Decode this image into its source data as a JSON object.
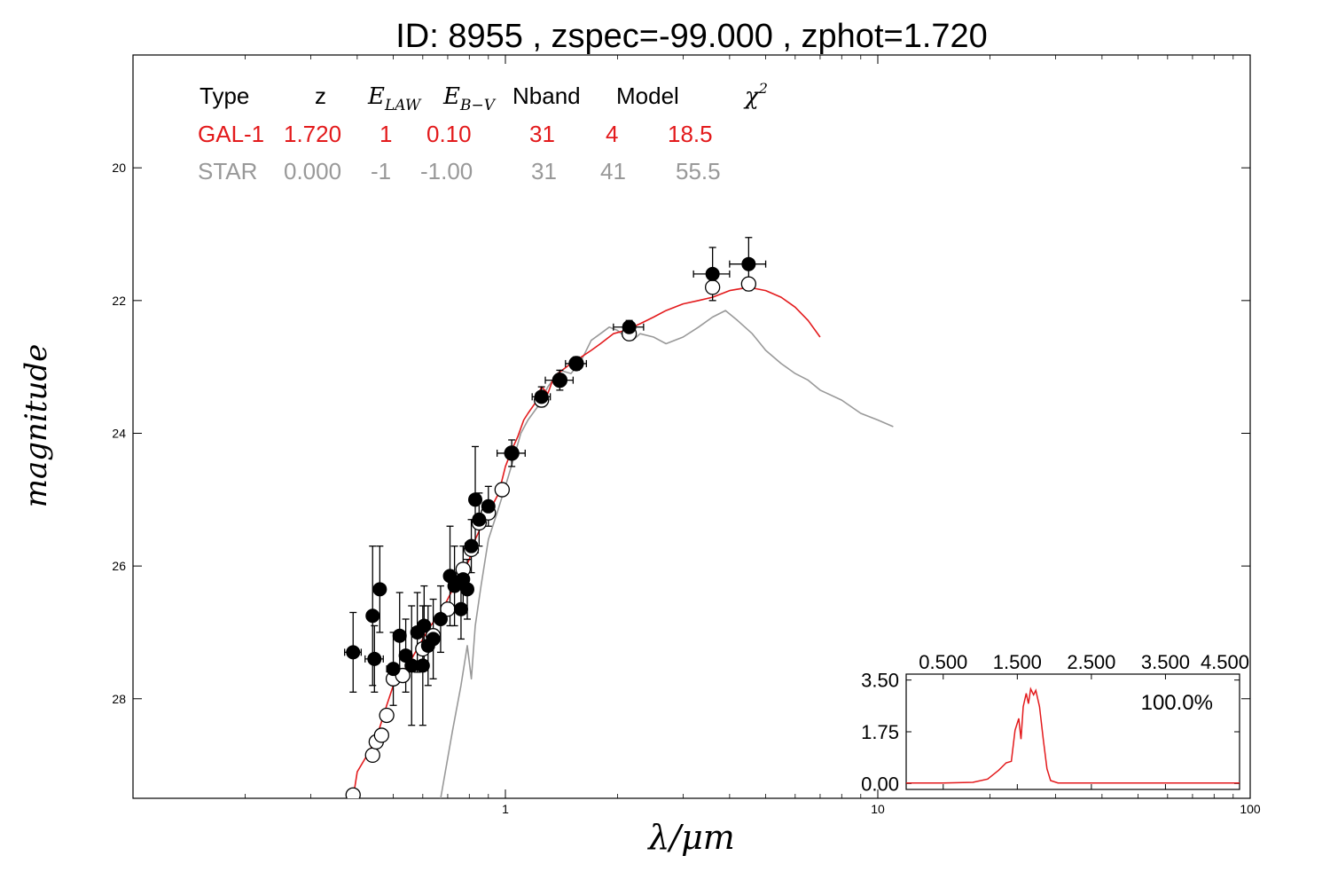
{
  "title": "ID:  8955  , zspec=-99.000 , zphot=1.720",
  "colors": {
    "galaxy_model": "#e31a1c",
    "star_model": "#999999",
    "observed": "#000000",
    "model_mag": "#ffffff",
    "star_text": "#999999",
    "gal_text": "#e31a1c"
  },
  "table": {
    "headers": {
      "type": "Type",
      "z": "z",
      "elaw_main": "E",
      "elaw_sub": "LAW",
      "ebv_main": "E",
      "ebv_sub": "B−V",
      "nband": "Nband",
      "model": "Model",
      "chi_main": "χ",
      "chi_sup": "2"
    },
    "rows": [
      {
        "type": "GAL-1",
        "z": "1.720",
        "elaw": "1",
        "ebv": "0.10",
        "nband": "31",
        "model": "4",
        "chi2": "18.5"
      },
      {
        "type": "STAR",
        "z": "0.000",
        "elaw": "-1",
        "ebv": "-1.00",
        "nband": "31",
        "model": "41",
        "chi2": "55.5"
      }
    ]
  },
  "chart_data": [
    {
      "type": "scatter",
      "title": "ID:  8955  , zspec=-99.000 , zphot=1.720",
      "xlabel": "λ/μm",
      "ylabel": "magnitude",
      "xscale": "log",
      "xlim": [
        0.1,
        100
      ],
      "ylim": [
        29.5,
        18.3
      ],
      "y_inverted": true,
      "x_tick_labels": [
        "1",
        "10",
        "100"
      ],
      "x_ticks": [
        1,
        10,
        100
      ],
      "y_ticks": [
        20,
        22,
        24,
        26,
        28
      ],
      "y_tick_labels": [
        "20",
        "22",
        "24",
        "26",
        "28"
      ],
      "series": [
        {
          "name": "GAL-1",
          "kind": "line",
          "points": [
            [
              0.39,
              29.5
            ],
            [
              0.4,
              29.1
            ],
            [
              0.42,
              28.9
            ],
            [
              0.45,
              28.6
            ],
            [
              0.48,
              28.1
            ],
            [
              0.5,
              27.8
            ],
            [
              0.53,
              27.6
            ],
            [
              0.56,
              27.4
            ],
            [
              0.6,
              27.1
            ],
            [
              0.63,
              26.9
            ],
            [
              0.67,
              26.7
            ],
            [
              0.7,
              26.5
            ],
            [
              0.73,
              26.3
            ],
            [
              0.77,
              26.1
            ],
            [
              0.8,
              25.9
            ],
            [
              0.83,
              25.6
            ],
            [
              0.87,
              25.35
            ],
            [
              0.92,
              25.1
            ],
            [
              0.96,
              24.9
            ],
            [
              1.0,
              24.5
            ],
            [
              1.04,
              24.25
            ],
            [
              1.08,
              24.05
            ],
            [
              1.12,
              23.8
            ],
            [
              1.15,
              23.7
            ],
            [
              1.2,
              23.55
            ],
            [
              1.25,
              23.3
            ],
            [
              1.3,
              23.4
            ],
            [
              1.35,
              23.15
            ],
            [
              1.42,
              23.05
            ],
            [
              1.5,
              22.95
            ],
            [
              1.6,
              22.85
            ],
            [
              1.7,
              22.75
            ],
            [
              1.8,
              22.65
            ],
            [
              1.95,
              22.5
            ],
            [
              2.1,
              22.45
            ],
            [
              2.3,
              22.35
            ],
            [
              2.5,
              22.25
            ],
            [
              2.7,
              22.15
            ],
            [
              3.0,
              22.05
            ],
            [
              3.3,
              22.0
            ],
            [
              3.6,
              21.95
            ],
            [
              4.0,
              21.85
            ],
            [
              4.5,
              21.8
            ],
            [
              5.0,
              21.85
            ],
            [
              5.5,
              21.95
            ],
            [
              6.0,
              22.1
            ],
            [
              6.5,
              22.3
            ],
            [
              7.0,
              22.55
            ]
          ]
        },
        {
          "name": "STAR",
          "kind": "line",
          "points": [
            [
              0.67,
              29.5
            ],
            [
              0.72,
              28.5
            ],
            [
              0.76,
              27.8
            ],
            [
              0.79,
              27.2
            ],
            [
              0.81,
              27.7
            ],
            [
              0.83,
              26.9
            ],
            [
              0.86,
              26.3
            ],
            [
              0.9,
              25.6
            ],
            [
              0.95,
              25.2
            ],
            [
              1.0,
              24.8
            ],
            [
              1.05,
              24.4
            ],
            [
              1.1,
              24.0
            ],
            [
              1.15,
              23.8
            ],
            [
              1.22,
              23.6
            ],
            [
              1.3,
              23.3
            ],
            [
              1.4,
              23.05
            ],
            [
              1.5,
              23.1
            ],
            [
              1.6,
              22.9
            ],
            [
              1.7,
              22.6
            ],
            [
              1.8,
              22.5
            ],
            [
              1.9,
              22.4
            ],
            [
              2.0,
              22.45
            ],
            [
              2.1,
              22.55
            ],
            [
              2.2,
              22.6
            ],
            [
              2.3,
              22.5
            ],
            [
              2.5,
              22.55
            ],
            [
              2.7,
              22.65
            ],
            [
              3.0,
              22.55
            ],
            [
              3.3,
              22.4
            ],
            [
              3.6,
              22.25
            ],
            [
              3.9,
              22.15
            ],
            [
              4.2,
              22.3
            ],
            [
              4.6,
              22.5
            ],
            [
              5.0,
              22.75
            ],
            [
              5.5,
              22.95
            ],
            [
              6.0,
              23.1
            ],
            [
              6.5,
              23.2
            ],
            [
              7.0,
              23.35
            ],
            [
              8.0,
              23.5
            ],
            [
              9.0,
              23.7
            ],
            [
              10.0,
              23.8
            ],
            [
              11.0,
              23.9
            ]
          ]
        },
        {
          "name": "observed",
          "kind": "points",
          "points": [
            {
              "x": 0.39,
              "y": 27.3,
              "ex": [
                0.37,
                0.41
              ],
              "ey": [
                26.7,
                27.9
              ]
            },
            {
              "x": 0.44,
              "y": 26.75,
              "ex": [
                0.43,
                0.45
              ],
              "ey": [
                25.7,
                27.8
              ]
            },
            {
              "x": 0.445,
              "y": 27.4,
              "ex": [
                0.42,
                0.47
              ],
              "ey": [
                26.9,
                27.9
              ]
            },
            {
              "x": 0.46,
              "y": 26.35,
              "ex": [
                0.45,
                0.47
              ],
              "ey": [
                25.7,
                27.0
              ]
            },
            {
              "x": 0.5,
              "y": 27.55,
              "ex": [
                0.48,
                0.52
              ],
              "ey": [
                27.0,
                28.1
              ]
            },
            {
              "x": 0.52,
              "y": 27.05,
              "ex": [
                0.51,
                0.53
              ],
              "ey": [
                26.4,
                27.7
              ]
            },
            {
              "x": 0.54,
              "y": 27.35,
              "ex": [
                0.53,
                0.55
              ],
              "ey": [
                26.8,
                27.9
              ]
            },
            {
              "x": 0.56,
              "y": 27.5,
              "ex": [
                0.55,
                0.57
              ],
              "ey": [
                26.6,
                28.4
              ]
            },
            {
              "x": 0.58,
              "y": 27.0,
              "ex": [
                0.57,
                0.59
              ],
              "ey": [
                26.4,
                27.6
              ]
            },
            {
              "x": 0.6,
              "y": 27.5,
              "ex": [
                0.59,
                0.61
              ],
              "ey": [
                26.6,
                28.4
              ]
            },
            {
              "x": 0.605,
              "y": 26.9,
              "ex": [
                0.595,
                0.615
              ],
              "ey": [
                26.3,
                27.5
              ]
            },
            {
              "x": 0.62,
              "y": 27.2,
              "ex": [
                0.61,
                0.63
              ],
              "ey": [
                26.6,
                27.8
              ]
            },
            {
              "x": 0.64,
              "y": 27.1,
              "ex": [
                0.63,
                0.65
              ],
              "ey": [
                26.5,
                27.7
              ]
            },
            {
              "x": 0.67,
              "y": 26.8,
              "ex": [
                0.66,
                0.68
              ],
              "ey": [
                26.3,
                27.3
              ]
            },
            {
              "x": 0.71,
              "y": 26.15,
              "ex": [
                0.7,
                0.72
              ],
              "ey": [
                25.4,
                26.9
              ]
            },
            {
              "x": 0.73,
              "y": 26.3,
              "ex": [
                0.72,
                0.74
              ],
              "ey": [
                25.7,
                26.9
              ]
            },
            {
              "x": 0.76,
              "y": 26.65,
              "ex": [
                0.75,
                0.77
              ],
              "ey": [
                26.2,
                27.1
              ]
            },
            {
              "x": 0.77,
              "y": 26.2,
              "ex": [
                0.76,
                0.78
              ],
              "ey": [
                25.7,
                26.7
              ]
            },
            {
              "x": 0.79,
              "y": 26.35,
              "ex": [
                0.78,
                0.8
              ],
              "ey": [
                25.9,
                26.8
              ]
            },
            {
              "x": 0.81,
              "y": 25.7,
              "ex": [
                0.78,
                0.84
              ],
              "ey": [
                25.3,
                26.1
              ]
            },
            {
              "x": 0.83,
              "y": 25.0,
              "ex": [
                0.82,
                0.84
              ],
              "ey": [
                24.2,
                25.8
              ]
            },
            {
              "x": 0.85,
              "y": 25.3,
              "ex": [
                0.83,
                0.87
              ],
              "ey": [
                24.9,
                25.7
              ]
            },
            {
              "x": 0.9,
              "y": 25.1,
              "ex": [
                0.87,
                0.93
              ],
              "ey": [
                24.8,
                25.4
              ]
            },
            {
              "x": 1.04,
              "y": 24.3,
              "ex": [
                0.95,
                1.13
              ],
              "ey": [
                24.1,
                24.5
              ]
            },
            {
              "x": 1.25,
              "y": 23.45,
              "ex": [
                1.18,
                1.32
              ],
              "ey": [
                23.3,
                23.6
              ]
            },
            {
              "x": 1.4,
              "y": 23.2,
              "ex": [
                1.28,
                1.52
              ],
              "ey": [
                23.05,
                23.35
              ]
            },
            {
              "x": 1.55,
              "y": 22.95,
              "ex": [
                1.45,
                1.65
              ],
              "ey": [
                22.85,
                23.05
              ]
            },
            {
              "x": 2.15,
              "y": 22.4,
              "ex": [
                1.95,
                2.35
              ],
              "ey": [
                22.3,
                22.5
              ]
            },
            {
              "x": 3.6,
              "y": 21.6,
              "ex": [
                3.2,
                4.0
              ],
              "ey": [
                21.2,
                22.0
              ]
            },
            {
              "x": 4.5,
              "y": 21.45,
              "ex": [
                4.0,
                5.0
              ],
              "ey": [
                21.05,
                21.85
              ]
            }
          ]
        },
        {
          "name": "model_magnitudes",
          "kind": "points",
          "points": [
            {
              "x": 0.39,
              "y": 29.45
            },
            {
              "x": 0.44,
              "y": 28.85
            },
            {
              "x": 0.45,
              "y": 28.65
            },
            {
              "x": 0.465,
              "y": 28.55
            },
            {
              "x": 0.48,
              "y": 28.25
            },
            {
              "x": 0.5,
              "y": 27.7
            },
            {
              "x": 0.53,
              "y": 27.65
            },
            {
              "x": 0.6,
              "y": 27.25
            },
            {
              "x": 0.64,
              "y": 27.05
            },
            {
              "x": 0.7,
              "y": 26.65
            },
            {
              "x": 0.77,
              "y": 26.05
            },
            {
              "x": 0.81,
              "y": 25.75
            },
            {
              "x": 0.85,
              "y": 25.35
            },
            {
              "x": 0.9,
              "y": 25.2
            },
            {
              "x": 0.98,
              "y": 24.85
            },
            {
              "x": 1.04,
              "y": 24.3
            },
            {
              "x": 1.25,
              "y": 23.5
            },
            {
              "x": 1.4,
              "y": 23.2
            },
            {
              "x": 1.55,
              "y": 22.95
            },
            {
              "x": 2.15,
              "y": 22.5
            },
            {
              "x": 3.6,
              "y": 21.8
            },
            {
              "x": 4.5,
              "y": 21.75
            }
          ]
        }
      ]
    },
    {
      "type": "line",
      "title": "",
      "xlabel": "",
      "ylabel": "",
      "xlim": [
        0.0,
        4.5
      ],
      "ylim": [
        -0.2,
        3.7
      ],
      "x_tick_labels": [
        "0.500",
        "1.500",
        "2.500",
        "3.500",
        "4.500"
      ],
      "x_ticks": [
        0.5,
        1.5,
        2.5,
        3.5,
        4.5
      ],
      "y_tick_labels": [
        "0.00",
        "1.75",
        "3.50"
      ],
      "y_ticks": [
        0.0,
        1.75,
        3.5
      ],
      "annotation": "100.0%",
      "series": [
        {
          "name": "PDF",
          "points": [
            [
              0.0,
              0.02
            ],
            [
              0.5,
              0.02
            ],
            [
              0.9,
              0.04
            ],
            [
              1.1,
              0.15
            ],
            [
              1.25,
              0.45
            ],
            [
              1.35,
              0.7
            ],
            [
              1.42,
              0.75
            ],
            [
              1.47,
              1.8
            ],
            [
              1.52,
              2.2
            ],
            [
              1.55,
              1.5
            ],
            [
              1.58,
              2.6
            ],
            [
              1.62,
              3.05
            ],
            [
              1.65,
              2.7
            ],
            [
              1.68,
              3.2
            ],
            [
              1.72,
              3.0
            ],
            [
              1.75,
              3.15
            ],
            [
              1.8,
              2.6
            ],
            [
              1.85,
              1.5
            ],
            [
              1.9,
              0.5
            ],
            [
              1.95,
              0.1
            ],
            [
              2.05,
              0.02
            ],
            [
              3.0,
              0.02
            ],
            [
              4.5,
              0.02
            ]
          ]
        }
      ]
    }
  ]
}
